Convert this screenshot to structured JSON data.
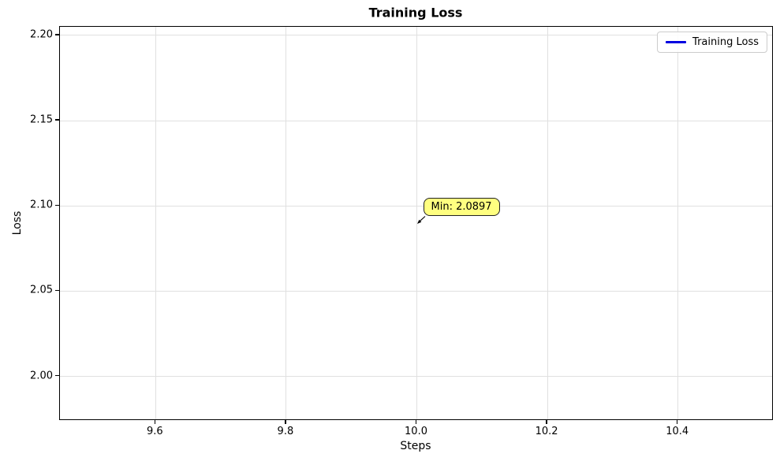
{
  "chart_data": {
    "type": "line",
    "title": "Training Loss",
    "xlabel": "Steps",
    "ylabel": "Loss",
    "series": [
      {
        "name": "Training Loss",
        "color": "#0000e0",
        "x": [
          10.0
        ],
        "y": [
          2.0897
        ]
      }
    ],
    "xlim": [
      9.4535,
      10.5465
    ],
    "ylim": [
      1.974,
      2.205
    ],
    "x_ticks": [
      9.6,
      9.8,
      10.0,
      10.2,
      10.4
    ],
    "x_tick_labels": [
      "9.6",
      "9.8",
      "10.0",
      "10.2",
      "10.4"
    ],
    "y_ticks": [
      2.0,
      2.05,
      2.1,
      2.15,
      2.2
    ],
    "y_tick_labels": [
      "2.00",
      "2.05",
      "2.10",
      "2.15",
      "2.20"
    ],
    "grid": true,
    "legend": {
      "position": "upper right",
      "entries": [
        {
          "label": "Training Loss",
          "color": "#0000e0"
        }
      ]
    },
    "annotation": {
      "text": "Min: 2.0897",
      "x": 10.0,
      "y": 2.0897,
      "bg": "#ffff80",
      "border": "#222222"
    }
  },
  "colors": {
    "grid": "#e0e0e0",
    "spine": "#000000",
    "background": "#ffffff"
  }
}
